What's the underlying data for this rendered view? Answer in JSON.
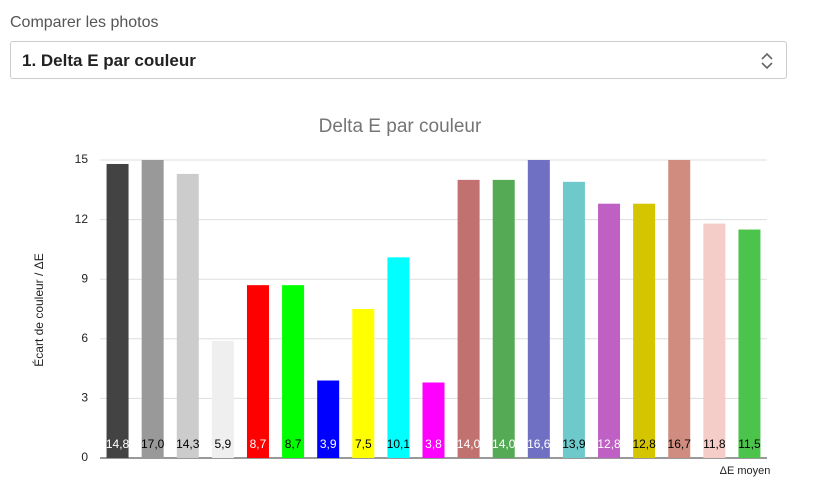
{
  "form": {
    "label": "Comparer les photos",
    "selected": "1. Delta E par couleur"
  },
  "chart_data": {
    "type": "bar",
    "title": "Delta E par couleur",
    "y_label": "Écart de couleur / ΔE",
    "x_label": "ΔE moyen",
    "values": [
      14.8,
      17.0,
      14.3,
      5.9,
      8.7,
      8.7,
      3.9,
      7.5,
      10.1,
      3.8,
      14.0,
      14.0,
      16.6,
      13.9,
      12.8,
      12.8,
      16.7,
      11.8,
      11.5
    ],
    "value_labels": [
      "14,8",
      "17,0",
      "14,3",
      "5,9",
      "8,7",
      "8,7",
      "3,9",
      "7,5",
      "10,1",
      "3,8",
      "14,0",
      "14,0",
      "16,6",
      "13,9",
      "12,8",
      "12,8",
      "16,7",
      "11,8",
      "11,5"
    ],
    "colors": [
      "#434343",
      "#999999",
      "#cccccc",
      "#efefef",
      "#ff0000",
      "#00ff00",
      "#0000ff",
      "#ffff00",
      "#00ffff",
      "#ff00ff",
      "#c27171",
      "#55aa55",
      "#6f6fc4",
      "#6ecaca",
      "#bf60c4",
      "#d4c500",
      "#d08c7e",
      "#f4cdc8",
      "#4cc44c"
    ],
    "ylim": [
      0,
      15
    ],
    "yticks": [
      0,
      3,
      6,
      9,
      12,
      15
    ],
    "grid": true
  }
}
